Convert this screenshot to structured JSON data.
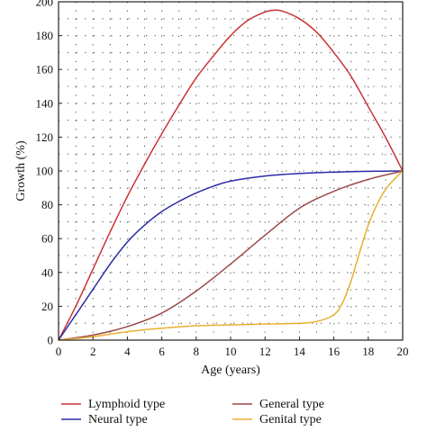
{
  "chart_data": {
    "type": "line",
    "title": "",
    "xlabel": "Age (years)",
    "ylabel": "Growth (%)",
    "xlim": [
      0,
      20
    ],
    "ylim": [
      0,
      200
    ],
    "x_ticks": [
      0,
      2,
      4,
      6,
      8,
      10,
      12,
      14,
      16,
      18,
      20
    ],
    "y_ticks": [
      0,
      20,
      40,
      60,
      80,
      100,
      120,
      140,
      160,
      180,
      200
    ],
    "grid": "dotted",
    "legend_position": "bottom",
    "series": [
      {
        "name": "Lymphoid type",
        "color": "#cc3333",
        "x": [
          0,
          1,
          2,
          3,
          4,
          5,
          6,
          7,
          8,
          9,
          10,
          11,
          12,
          12.5,
          13,
          14,
          15,
          16,
          17,
          18,
          19,
          20
        ],
        "y": [
          0,
          20,
          42,
          64,
          85,
          104,
          122,
          139,
          155,
          168,
          180,
          189,
          194,
          195,
          194.5,
          190,
          182,
          170,
          156,
          138,
          120,
          100
        ]
      },
      {
        "name": "Neural type",
        "color": "#2b2ba8",
        "x": [
          0,
          1,
          2,
          3,
          4,
          5,
          6,
          7,
          8,
          9,
          10,
          12,
          14,
          16,
          18,
          20
        ],
        "y": [
          0,
          15,
          30,
          45,
          58,
          68,
          76,
          82,
          87,
          91,
          94,
          97,
          98.5,
          99.3,
          99.8,
          100
        ]
      },
      {
        "name": "General type",
        "color": "#9a4a4a",
        "x": [
          0,
          2,
          4,
          6,
          8,
          10,
          12,
          14,
          16,
          18,
          20
        ],
        "y": [
          0,
          3,
          8,
          16,
          29,
          45,
          62,
          78,
          88,
          95,
          100
        ]
      },
      {
        "name": "Genital type",
        "color": "#e8b030",
        "x": [
          0,
          2,
          4,
          6,
          8,
          10,
          12,
          14,
          15,
          16,
          16.5,
          17,
          17.5,
          18,
          18.5,
          19,
          19.5,
          20
        ],
        "y": [
          0,
          2,
          5,
          7,
          8.5,
          9,
          9.5,
          10,
          11,
          15,
          22,
          35,
          52,
          68,
          80,
          89,
          95,
          100
        ]
      }
    ]
  }
}
